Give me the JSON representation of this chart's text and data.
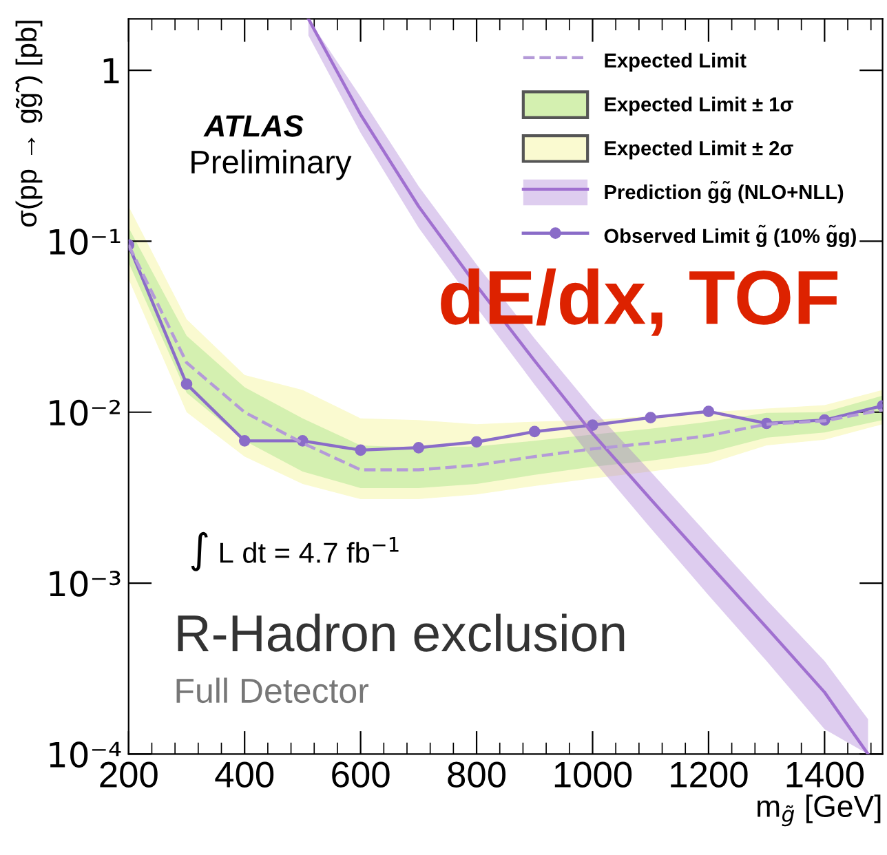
{
  "chart_data": {
    "type": "line",
    "xlabel": "m$_{g̃}$ [GeV]",
    "ylabel": "σ(pp → g̃g̃ ) [pb]",
    "x": [
      200,
      300,
      400,
      500,
      600,
      700,
      800,
      900,
      1000,
      1100,
      1200,
      1300,
      1400,
      1500
    ],
    "log": "y",
    "xlim": [
      200,
      1500
    ],
    "ylim": [
      0.0001,
      2
    ],
    "xticks": [
      200,
      400,
      600,
      800,
      1000,
      1200,
      1400
    ],
    "yticks": [
      {
        "value": 0.0001,
        "label": "10⁻⁴"
      },
      {
        "value": 0.001,
        "label": "10⁻³"
      },
      {
        "value": 0.01,
        "label": "10⁻²"
      },
      {
        "value": 0.1,
        "label": "10⁻¹"
      },
      1
    ],
    "grid": false,
    "legend": "top right",
    "series": [
      {
        "name": "Expected Limit",
        "line_style": "dashed",
        "marker": "none",
        "color": "#b49ad8",
        "values": [
          0.095,
          0.0195,
          0.01,
          0.0066,
          0.0046,
          0.0046,
          0.0049,
          0.0055,
          0.0061,
          0.0066,
          0.0073,
          0.0085,
          0.0089,
          0.0103
        ]
      },
      {
        "name": "Expected Limit ± 1σ",
        "type": "area",
        "color": "#d4f0b0",
        "values": [
          null,
          null,
          null,
          null,
          null,
          null,
          null,
          null,
          null,
          null,
          null,
          null,
          null,
          null
        ],
        "lower": [
          0.075,
          0.013,
          0.0068,
          0.0045,
          0.0036,
          0.0036,
          0.0038,
          0.0043,
          0.0048,
          0.0052,
          0.0058,
          0.0071,
          0.0076,
          0.009
        ],
        "upper": [
          0.12,
          0.028,
          0.014,
          0.0092,
          0.0064,
          0.0062,
          0.0063,
          0.0068,
          0.0074,
          0.008,
          0.0088,
          0.0099,
          0.01,
          0.0125
        ]
      },
      {
        "name": "Expected Limit ± 2σ",
        "type": "area",
        "color": "#fafad0",
        "values": [
          null,
          null,
          null,
          null,
          null,
          null,
          null,
          null,
          null,
          null,
          null,
          null,
          null,
          null
        ],
        "lower": [
          0.06,
          0.01,
          0.0055,
          0.0038,
          0.0031,
          0.0031,
          0.0033,
          0.0037,
          0.0041,
          0.0045,
          0.005,
          0.0064,
          0.0069,
          0.0085
        ],
        "upper": [
          0.16,
          0.035,
          0.0165,
          0.0135,
          0.0092,
          0.009,
          0.0085,
          0.0088,
          0.009,
          0.0095,
          0.01,
          0.0105,
          0.011,
          0.0135
        ]
      },
      {
        "name": "Prediction g̃g̃ (NLO+NLL)",
        "line_style": "solid",
        "marker": "none",
        "color": "#a070d0",
        "x": [
          510,
          600,
          700,
          800,
          900,
          1000,
          1100,
          1200,
          1300,
          1400,
          1475
        ],
        "values": [
          2.0,
          0.55,
          0.16,
          0.055,
          0.02,
          0.0075,
          0.0031,
          0.0013,
          0.00055,
          0.00023,
          0.0001
        ],
        "lower": [
          1.6,
          0.43,
          0.12,
          0.041,
          0.0145,
          0.0053,
          0.0021,
          0.00085,
          0.00035,
          0.00014,
          0.0001
        ],
        "upper": [
          2.0,
          0.7,
          0.21,
          0.073,
          0.027,
          0.0105,
          0.0045,
          0.0019,
          0.0008,
          0.00035,
          0.00016
        ]
      },
      {
        "name": "Observed Limit g̃ (10% g̃g)",
        "line_style": "solid",
        "marker": "circle",
        "color": "#8a6cc8",
        "values": [
          0.095,
          0.0146,
          0.0068,
          0.0068,
          0.006,
          0.0062,
          0.0067,
          0.0077,
          0.0084,
          0.0093,
          0.0101,
          0.0086,
          0.009,
          0.0109
        ]
      }
    ],
    "annotations": [
      "ATLAS",
      "Preliminary",
      "dE/dx, TOF",
      "∫ L dt = 4.7 fb$^{−1}$",
      "R-Hadron exclusion",
      "Full Detector"
    ]
  }
}
